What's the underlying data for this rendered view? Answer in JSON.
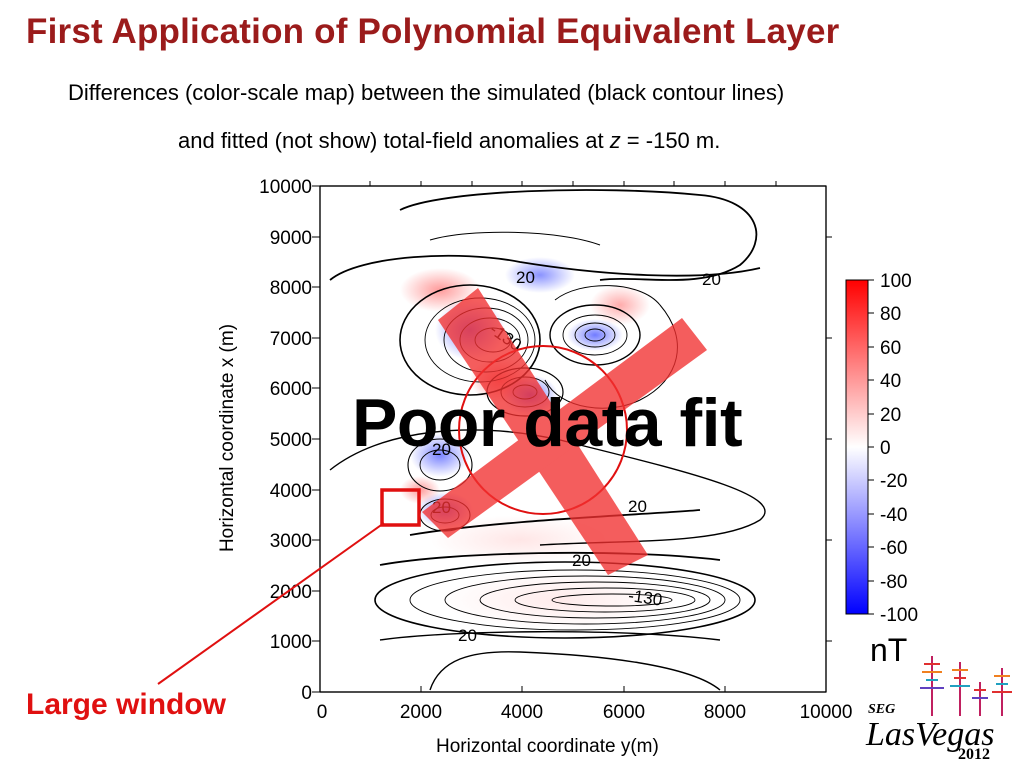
{
  "slide": {
    "title": "First Application of Polynomial Equivalent Layer",
    "subtitle_line1": "Differences (color-scale map) between the simulated (black contour lines)",
    "subtitle_line2_pre": "and fitted (not show) total-field anomalies at ",
    "subtitle_line2_var": "z",
    "subtitle_line2_post": " = -150 m.",
    "overlay_label": "Poor data fit",
    "window_label": "Large window",
    "logo": {
      "org": "SEG",
      "city": "LasVegas",
      "year": "2012"
    }
  },
  "colors": {
    "title": "#9b1b1b",
    "annotation": "#e01010",
    "cross": "#f23030"
  },
  "chart_data": {
    "type": "heatmap",
    "xlabel": "Horizontal coordinate y(m)",
    "ylabel": "Horizontal coordinate x (m)",
    "xlim": [
      0,
      10000
    ],
    "ylim": [
      0,
      10000
    ],
    "x_ticks": [
      "0",
      "2000",
      "4000",
      "6000",
      "8000",
      "10000"
    ],
    "y_ticks": [
      "0",
      "1000",
      "2000",
      "3000",
      "4000",
      "5000",
      "6000",
      "7000",
      "8000",
      "9000",
      "10000"
    ],
    "colorbar": {
      "unit": "nT",
      "min": -100,
      "max": 100,
      "ticks": [
        "100",
        "80",
        "60",
        "40",
        "20",
        "0",
        "-20",
        "-40",
        "-60",
        "-80",
        "-100"
      ]
    },
    "contour_labels": [
      {
        "text": "20",
        "y": 4100,
        "x": 7900
      },
      {
        "text": "20",
        "y": 7850,
        "x": 7800
      },
      {
        "text": "-130",
        "y": 3650,
        "x": 6900
      },
      {
        "text": "20",
        "y": 2300,
        "x": 5100
      },
      {
        "text": "20",
        "y": 3750,
        "x": 3700
      },
      {
        "text": "20",
        "y": 2500,
        "x": 2300
      },
      {
        "text": "20",
        "y": 6400,
        "x": 3600
      },
      {
        "text": "-130",
        "y": 6200,
        "x": 1800
      },
      {
        "text": "20",
        "y": 2900,
        "x": 1000
      }
    ],
    "annotations": [
      {
        "type": "window",
        "y_range": [
          1200,
          1950
        ],
        "x_range": [
          3300,
          4050
        ],
        "label": "Large window"
      },
      {
        "type": "cross",
        "label": "Poor data fit"
      }
    ]
  }
}
